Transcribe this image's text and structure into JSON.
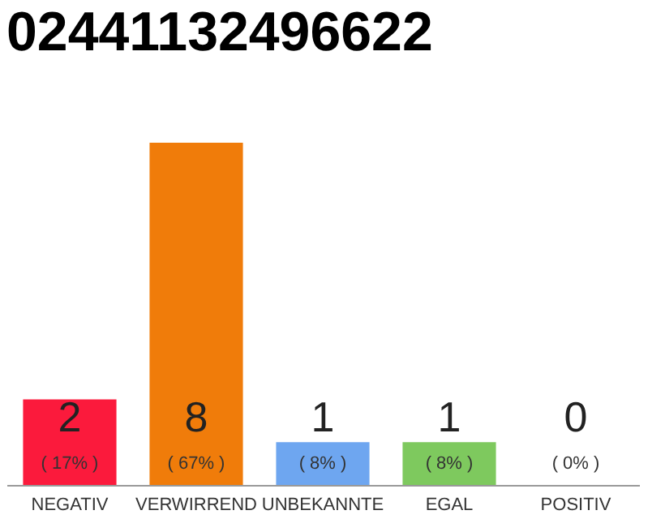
{
  "chart_data": {
    "type": "bar",
    "title": "02441132496622",
    "categories": [
      "NEGATIV",
      "VERWIRREND",
      "UNBEKANNTE",
      "EGAL",
      "POSITIV"
    ],
    "values": [
      2,
      8,
      1,
      1,
      0
    ],
    "colors": [
      "#fb1a3c",
      "#f07c0a",
      "#6ea6f0",
      "#7ec95e",
      "#d0d0d0"
    ],
    "data_labels": true,
    "annotations": [
      "( 17% )",
      "( 67% )",
      "( 8% )",
      "( 8% )",
      "( 0% )"
    ]
  }
}
